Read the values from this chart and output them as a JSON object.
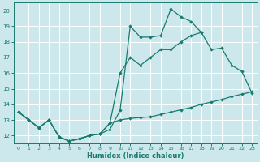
{
  "xlabel": "Humidex (Indice chaleur)",
  "bg_color": "#cce8ec",
  "grid_color": "#ffffff",
  "line_color": "#1a7a6e",
  "xlim": [
    -0.5,
    23.5
  ],
  "ylim": [
    11.5,
    20.5
  ],
  "yticks": [
    12,
    13,
    14,
    15,
    16,
    17,
    18,
    19,
    20
  ],
  "xticks": [
    0,
    1,
    2,
    3,
    4,
    5,
    6,
    7,
    8,
    9,
    10,
    11,
    12,
    13,
    14,
    15,
    16,
    17,
    18,
    19,
    20,
    21,
    22,
    23
  ],
  "line1_x": [
    0,
    1,
    2,
    3,
    4,
    5,
    6,
    7,
    8,
    9,
    10,
    11,
    12,
    13,
    14,
    15,
    16,
    17,
    18
  ],
  "line1_y": [
    13.5,
    13.0,
    12.5,
    13.0,
    11.9,
    11.65,
    11.8,
    12.0,
    12.1,
    12.4,
    13.6,
    19.0,
    18.3,
    18.3,
    18.4,
    20.1,
    19.6,
    19.3,
    18.6
  ],
  "line2_x": [
    0,
    1,
    2,
    3,
    4,
    5,
    6,
    7,
    8,
    9,
    10,
    11,
    12,
    13,
    14,
    15,
    16,
    17,
    18,
    19,
    20,
    21,
    22,
    23
  ],
  "line2_y": [
    13.5,
    13.0,
    12.5,
    13.0,
    11.9,
    11.65,
    11.8,
    12.0,
    12.1,
    12.8,
    13.0,
    13.1,
    13.15,
    13.2,
    13.35,
    13.5,
    13.65,
    13.8,
    14.0,
    14.15,
    14.3,
    14.5,
    14.65,
    14.8
  ],
  "line3_x": [
    0,
    1,
    2,
    3,
    4,
    5,
    6,
    7,
    8,
    9,
    10,
    11,
    12,
    13,
    14,
    15,
    16,
    17,
    18,
    19,
    20,
    21,
    22,
    23
  ],
  "line3_y": [
    13.5,
    13.0,
    12.5,
    13.0,
    11.9,
    11.65,
    11.8,
    12.0,
    12.1,
    12.8,
    16.0,
    17.0,
    16.5,
    17.0,
    17.5,
    17.5,
    18.0,
    18.4,
    18.6,
    17.5,
    17.6,
    16.5,
    16.1,
    14.7
  ]
}
